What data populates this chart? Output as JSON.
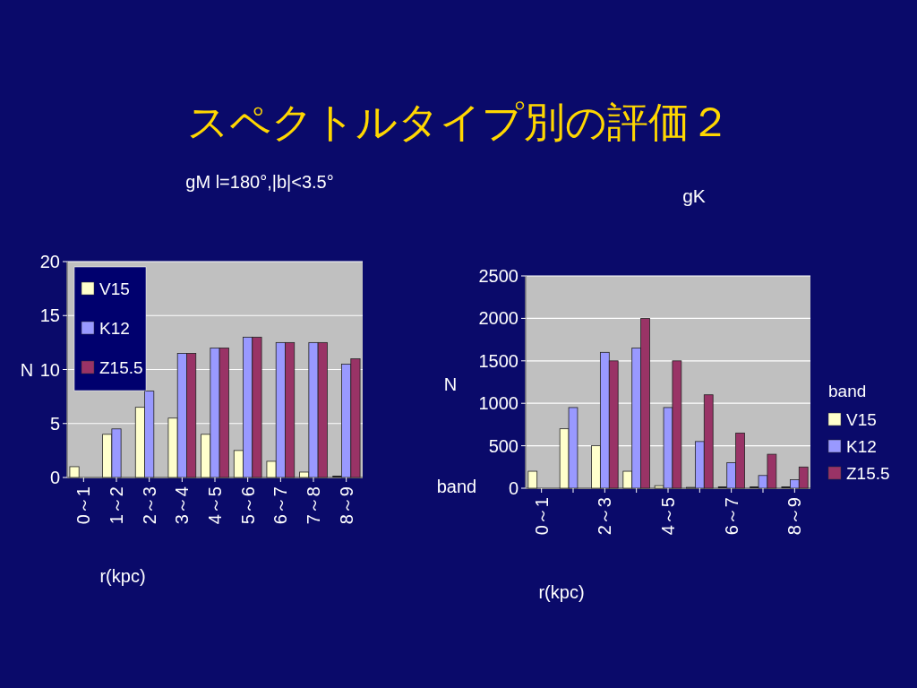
{
  "chart_data": [
    {
      "type": "bar",
      "title": "スペクトルタイプ別の評価２",
      "subtitle": "gM l=180°,|b|<3.5°",
      "xlabel": "r(kpc)",
      "ylabel": "N",
      "annotations": [
        "band"
      ],
      "categories": [
        "0～1",
        "1～2",
        "2～3",
        "3～4",
        "4～5",
        "5～6",
        "6～7",
        "7～8",
        "8～9"
      ],
      "series": [
        {
          "name": "V15",
          "color": "#ffffcc",
          "values": [
            1,
            4,
            6.5,
            5.5,
            4,
            2.5,
            1.5,
            0.5,
            0
          ]
        },
        {
          "name": "K12",
          "color": "#9999ff",
          "values": [
            null,
            4.5,
            8,
            11.5,
            12,
            13,
            12.5,
            12.5,
            10.5
          ]
        },
        {
          "name": "Z15.5",
          "color": "#993366",
          "values": [
            null,
            null,
            null,
            11.5,
            12,
            13,
            12.5,
            12.5,
            11
          ]
        }
      ],
      "ylim": [
        0,
        20
      ],
      "yticks": [
        0,
        5,
        10,
        15,
        20
      ],
      "grid": "y",
      "legend": "top left"
    },
    {
      "type": "bar",
      "title": "gK",
      "xlabel": "r(kpc)",
      "ylabel": "N",
      "legend_title": "band",
      "categories": [
        "0～1",
        null,
        "2～3",
        null,
        "4～5",
        null,
        "6～7",
        null,
        "8～9"
      ],
      "series": [
        {
          "name": "V15",
          "color": "#ffffcc",
          "values": [
            200,
            700,
            500,
            200,
            30,
            10,
            0,
            0,
            0
          ]
        },
        {
          "name": "K12",
          "color": "#9999ff",
          "values": [
            null,
            950,
            1600,
            1650,
            950,
            550,
            300,
            150,
            100
          ]
        },
        {
          "name": "Z15.5",
          "color": "#993366",
          "values": [
            null,
            null,
            1500,
            2000,
            1500,
            1100,
            650,
            400,
            250
          ]
        }
      ],
      "ylim": [
        0,
        2500
      ],
      "yticks": [
        0,
        500,
        1000,
        1500,
        2000,
        2500
      ],
      "grid": "y",
      "legend": "right"
    }
  ]
}
